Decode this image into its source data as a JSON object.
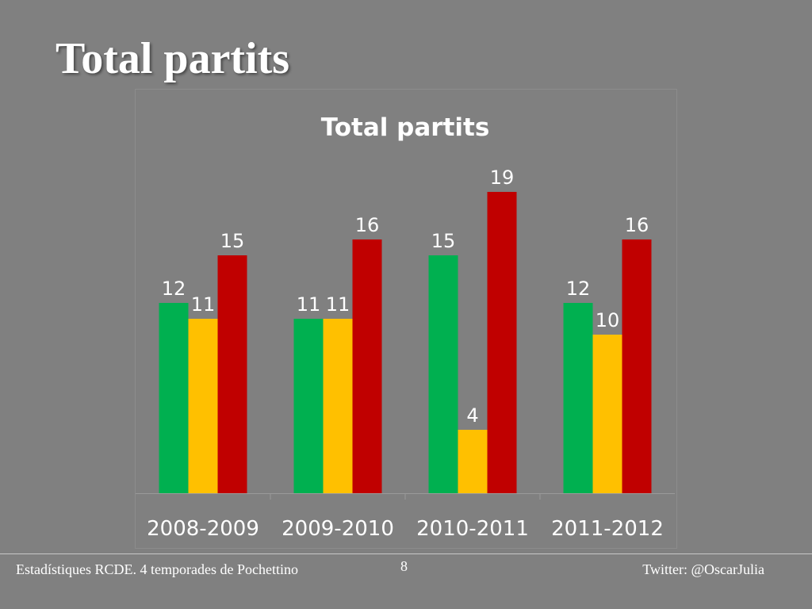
{
  "slide": {
    "title": "Total partits"
  },
  "footer": {
    "left_text": "Estadístiques RCDE. 4 temporades de Pochettino",
    "page_number": "8",
    "right_text": "Twitter: @OscarJulia"
  },
  "colors": {
    "background": "#808080",
    "series": [
      "#00b050",
      "#ffc000",
      "#c00000"
    ]
  },
  "chart_data": {
    "type": "bar",
    "title": "Total partits",
    "xlabel": "",
    "ylabel": "",
    "categories": [
      "2008-2009",
      "2009-2010",
      "2010-2011",
      "2011-2012"
    ],
    "series": [
      {
        "values": [
          12,
          11,
          15,
          12
        ],
        "color": "#00b050"
      },
      {
        "values": [
          11,
          11,
          4,
          10
        ],
        "color": "#ffc000"
      },
      {
        "values": [
          15,
          16,
          19,
          16
        ],
        "color": "#c00000"
      }
    ],
    "ylim": [
      0,
      19
    ],
    "grid": false,
    "legend": "none",
    "data_labels": true
  }
}
